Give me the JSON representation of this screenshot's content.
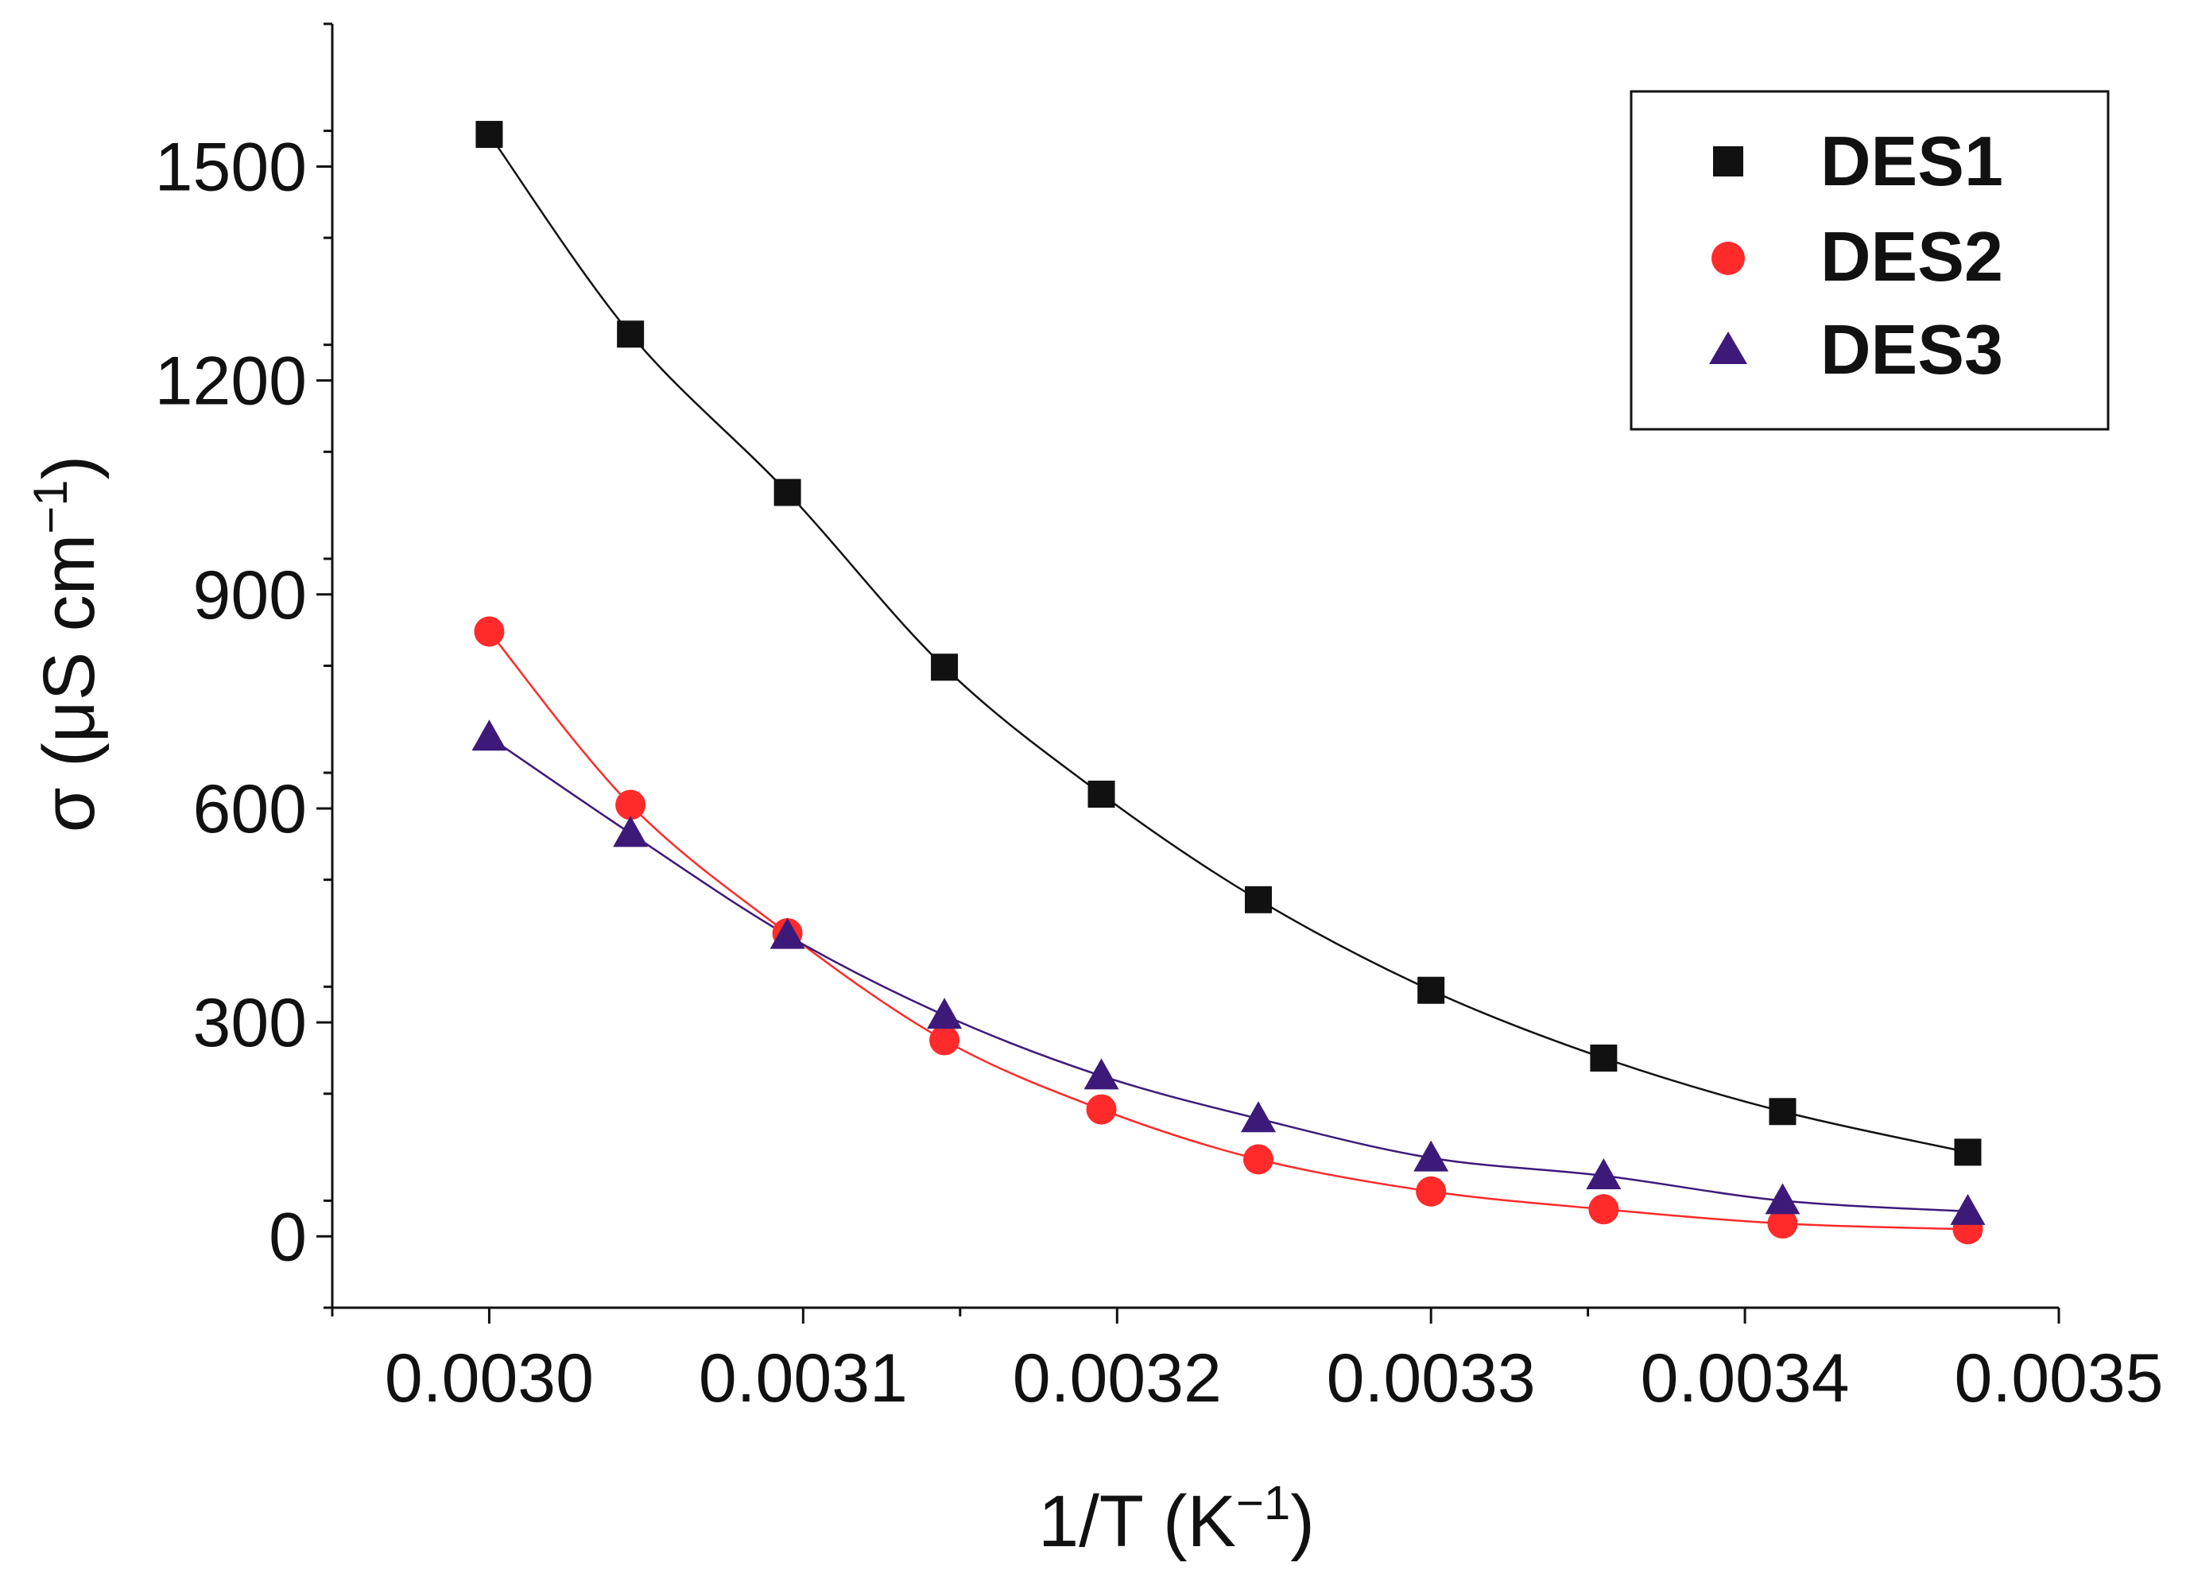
{
  "chart_data": {
    "type": "scatter",
    "title": "",
    "xlabel_main": "1/T (K",
    "xlabel_sup": "−1",
    "xlabel_end": ")",
    "ylabel_main": "σ (μS cm",
    "ylabel_sup": "−1",
    "ylabel_end": ")",
    "xlim": [
      0.00295,
      0.0035
    ],
    "ylim": [
      -100,
      1700
    ],
    "x_ticks": [
      0.003,
      0.0031,
      0.0032,
      0.0033,
      0.0034,
      0.0035
    ],
    "x_tick_labels": [
      "0.0030",
      "0.0031",
      "0.0032",
      "0.0033",
      "0.0034",
      "0.0035"
    ],
    "y_ticks": [
      0,
      300,
      600,
      900,
      1200,
      1500
    ],
    "y_tick_labels": [
      "0",
      "300",
      "600",
      "900",
      "1200",
      "1500"
    ],
    "legend_position": "top-right",
    "x": [
      0.003,
      0.003045,
      0.003095,
      0.003145,
      0.003195,
      0.003245,
      0.0033,
      0.003355,
      0.003412,
      0.003471
    ],
    "series": [
      {
        "name": "DES1",
        "marker": "square",
        "color": "#111111",
        "line_color": "#111111",
        "values": [
          1545,
          1265,
          1043,
          798,
          620,
          472,
          345,
          250,
          175,
          118
        ]
      },
      {
        "name": "DES2",
        "marker": "circle",
        "color": "#ff2a2a",
        "line_color": "#ff2a2a",
        "values": [
          848,
          605,
          425,
          275,
          178,
          108,
          63,
          38,
          18,
          10
        ]
      },
      {
        "name": "DES3",
        "marker": "triangle",
        "color": "#3d1a7a",
        "line_color": "#3d1a7a",
        "values": [
          700,
          565,
          422,
          310,
          225,
          165,
          110,
          85,
          50,
          35
        ]
      }
    ]
  }
}
